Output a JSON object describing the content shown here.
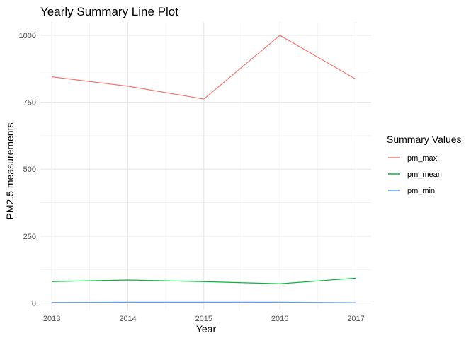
{
  "chart_data": {
    "type": "line",
    "title": "Yearly Summary Line Plot",
    "xlabel": "Year",
    "ylabel": "PM2.5 measurements",
    "x": [
      2013,
      2014,
      2015,
      2016,
      2017
    ],
    "x_ticks": [
      "2013",
      "2014",
      "2015",
      "2016",
      "2017"
    ],
    "y_ticks": [
      0,
      250,
      500,
      750,
      1000
    ],
    "y_tick_labels": [
      "0",
      "250",
      "500",
      "750",
      "1000"
    ],
    "ylim": [
      -25,
      1050
    ],
    "xlim": [
      2012.85,
      2017.2
    ],
    "grid": true,
    "legend": {
      "title": "Summary Values",
      "position": "right"
    },
    "series": [
      {
        "name": "pm_max",
        "color": "#F8766D",
        "values": [
          845,
          810,
          762,
          1000,
          836
        ]
      },
      {
        "name": "pm_mean",
        "color": "#00BA38",
        "values": [
          80,
          86,
          80,
          72,
          93
        ]
      },
      {
        "name": "pm_min",
        "color": "#619CFF",
        "values": [
          2,
          3,
          3,
          3,
          1
        ]
      }
    ]
  }
}
